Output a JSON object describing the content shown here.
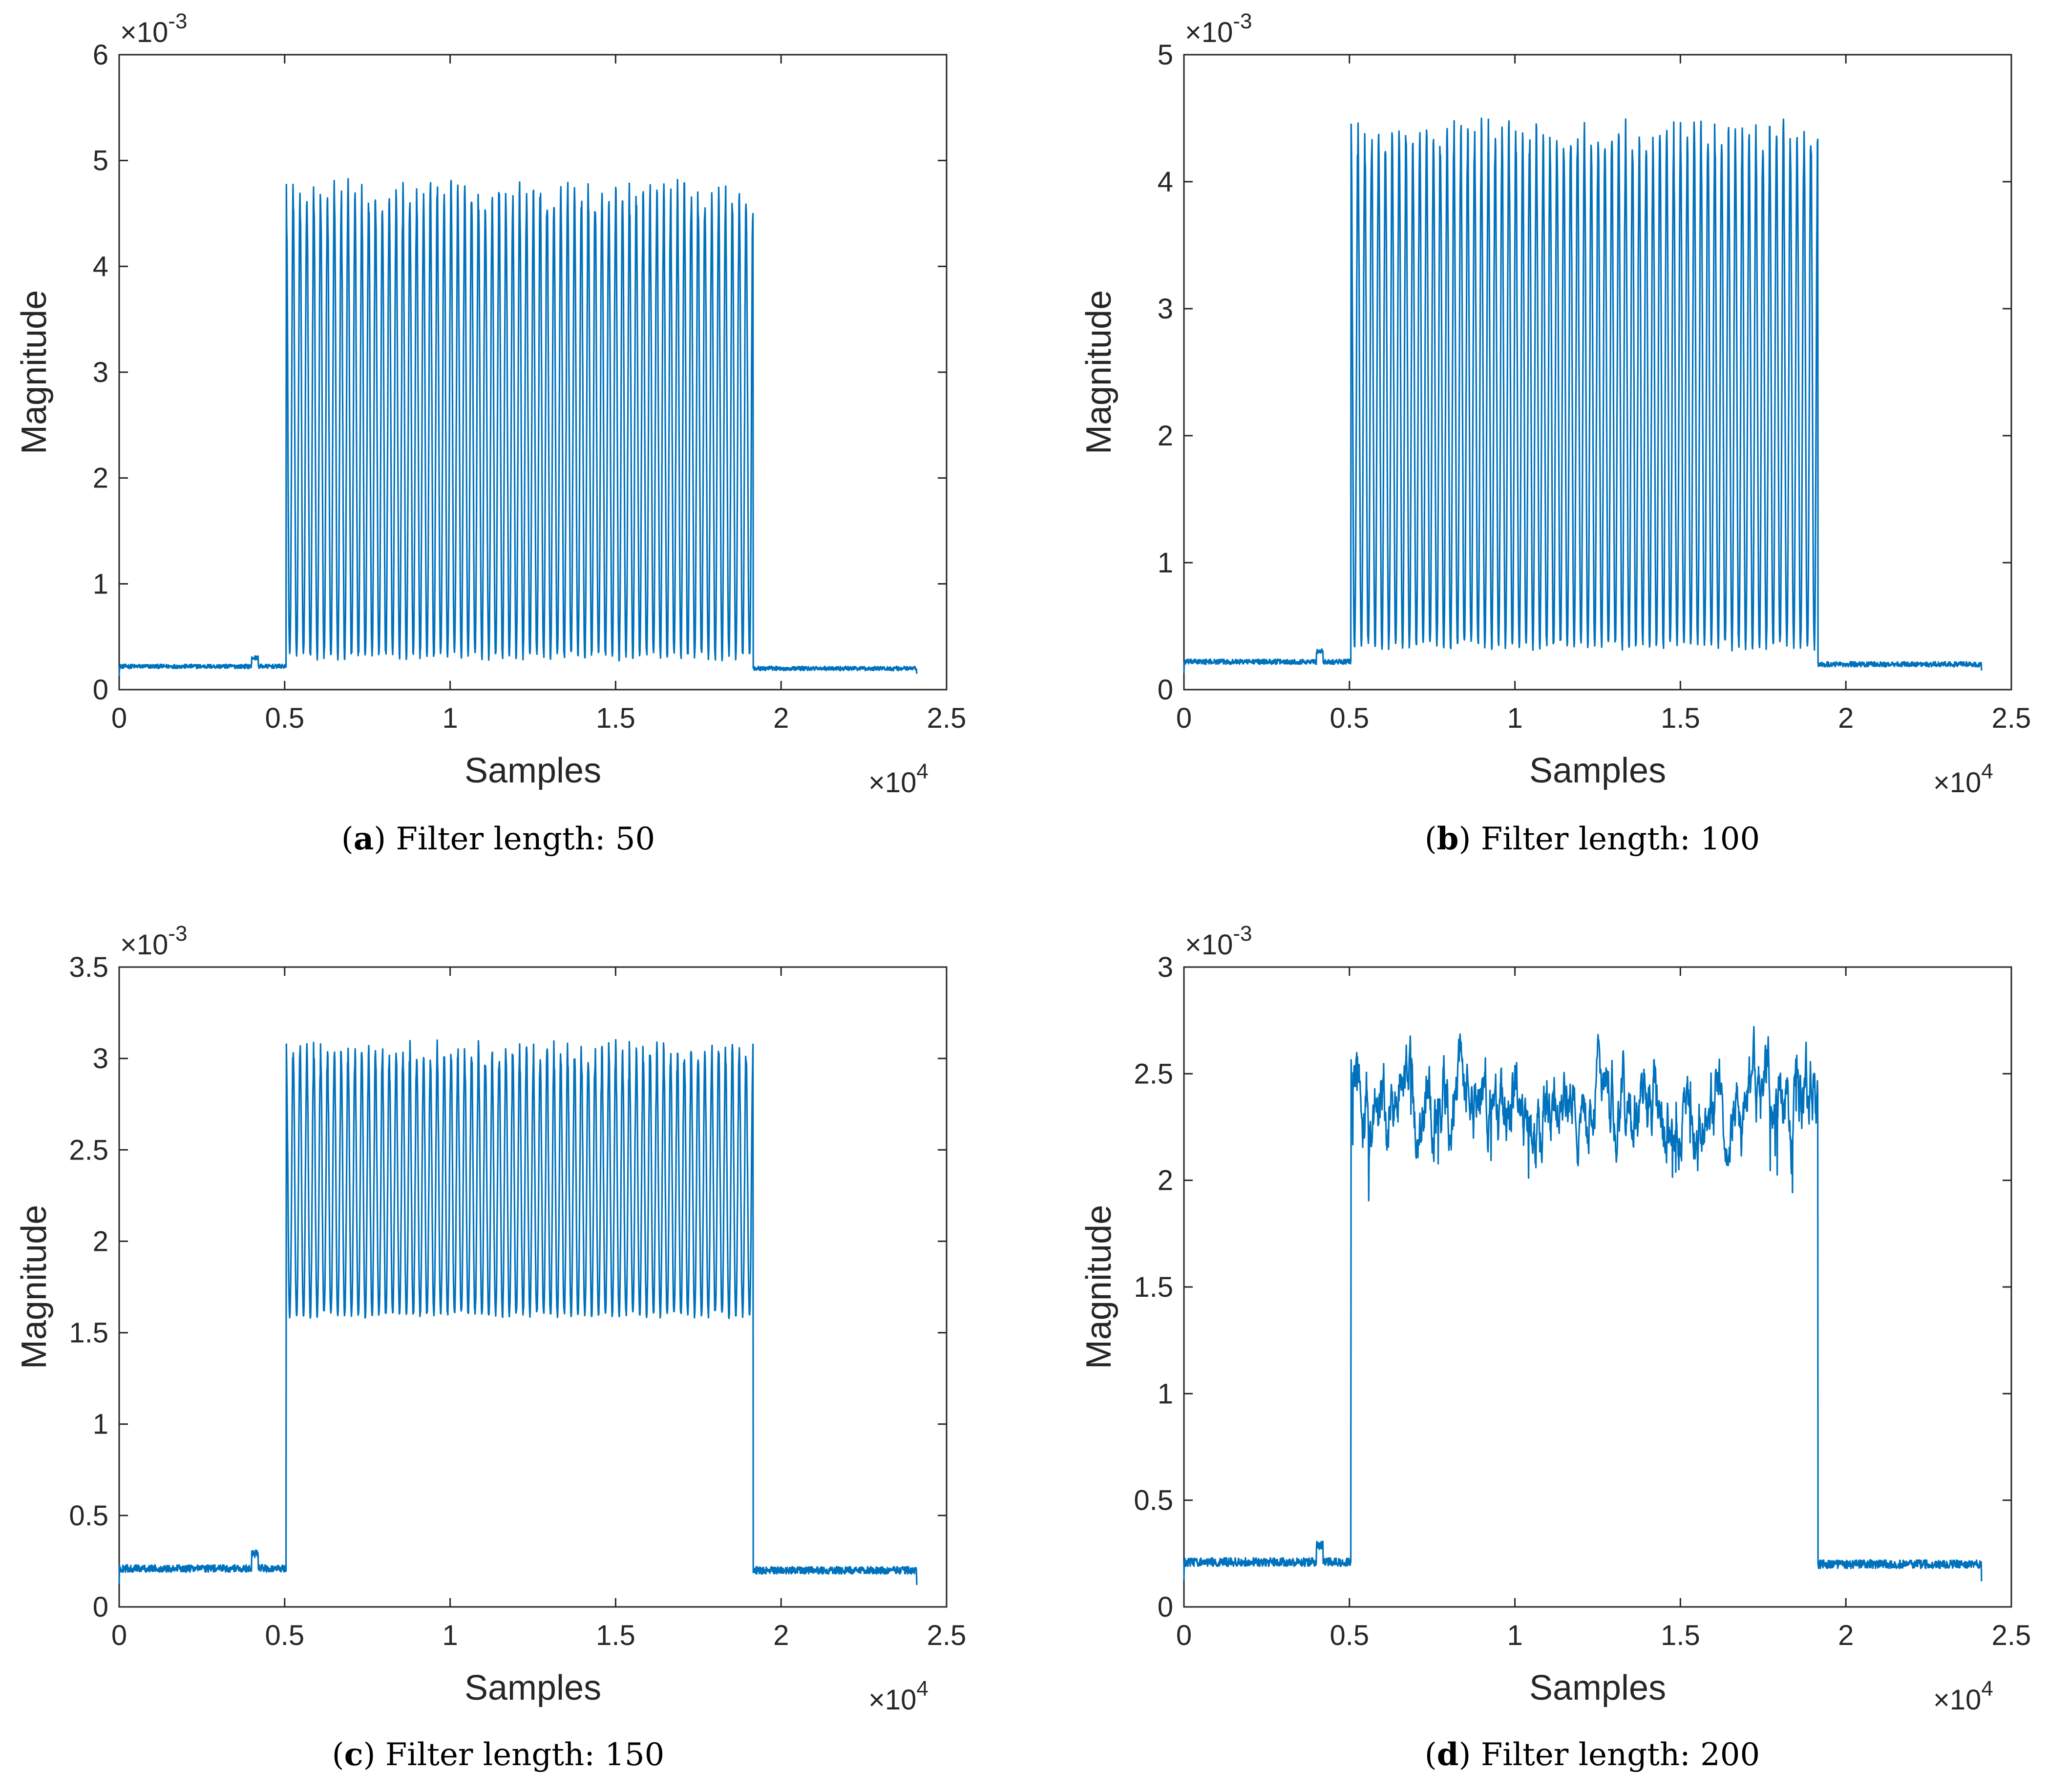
{
  "figure": {
    "background": "#ffffff"
  },
  "chart_data": [
    {
      "type": "line",
      "panel_letter": "a",
      "caption": "Filter length: 50",
      "xlabel": "Samples",
      "ylabel": "Magnitude",
      "xlim": [
        0,
        2.5
      ],
      "ylim": [
        0,
        6
      ],
      "xticks": [
        "0",
        "0.5",
        "1",
        "1.5",
        "2",
        "2.5"
      ],
      "yticks": [
        "0",
        "1",
        "2",
        "3",
        "4",
        "5",
        "6"
      ],
      "x_multiplier": "×10",
      "x_exponent": "4",
      "y_multiplier": "×10",
      "y_exponent": "-3",
      "color": "#0072BD",
      "signal": {
        "x_start": 0,
        "x_end": 2.41,
        "baseline": 0.22,
        "pulse_start": 0.505,
        "pulse_end": 1.915,
        "oscillations": 68,
        "peak": 4.6,
        "trough": 0.32,
        "noise": 0.35,
        "smooth": 0.0,
        "tail_level": 0.2,
        "end_value": 0.15
      }
    },
    {
      "type": "line",
      "panel_letter": "b",
      "caption": "Filter length: 100",
      "xlabel": "Samples",
      "ylabel": "Magnitude",
      "xlim": [
        0,
        2.5
      ],
      "ylim": [
        0,
        5
      ],
      "xticks": [
        "0",
        "0.5",
        "1",
        "1.5",
        "2",
        "2.5"
      ],
      "yticks": [
        "0",
        "1",
        "2",
        "3",
        "4",
        "5"
      ],
      "x_multiplier": "×10",
      "x_exponent": "4",
      "y_multiplier": "×10",
      "y_exponent": "-3",
      "color": "#0072BD",
      "signal": {
        "x_start": 0,
        "x_end": 2.41,
        "baseline": 0.22,
        "pulse_start": 0.505,
        "pulse_end": 1.915,
        "oscillations": 68,
        "peak": 4.3,
        "trough": 0.35,
        "noise": 0.3,
        "smooth": 0.0,
        "tail_level": 0.2,
        "end_value": 0.15
      }
    },
    {
      "type": "line",
      "panel_letter": "c",
      "caption": "Filter length: 150",
      "xlabel": "Samples",
      "ylabel": "Magnitude",
      "xlim": [
        0,
        2.5
      ],
      "ylim": [
        0,
        3.5
      ],
      "xticks": [
        "0",
        "0.5",
        "1",
        "1.5",
        "2",
        "2.5"
      ],
      "yticks": [
        "0",
        "0.5",
        "1",
        "1.5",
        "2",
        "2.5",
        "3",
        "3.5"
      ],
      "x_multiplier": "×10",
      "x_exponent": "4",
      "y_multiplier": "×10",
      "y_exponent": "-3",
      "color": "#0072BD",
      "signal": {
        "x_start": 0,
        "x_end": 2.41,
        "baseline": 0.21,
        "pulse_start": 0.505,
        "pulse_end": 1.915,
        "oscillations": 68,
        "peak": 3.0,
        "trough": 1.6,
        "noise": 0.15,
        "smooth": 0.0,
        "tail_level": 0.2,
        "end_value": 0.12
      }
    },
    {
      "type": "line",
      "panel_letter": "d",
      "caption": "Filter length: 200",
      "xlabel": "Samples",
      "ylabel": "Magnitude",
      "xlim": [
        0,
        2.5
      ],
      "ylim": [
        0,
        3
      ],
      "xticks": [
        "0",
        "0.5",
        "1",
        "1.5",
        "2",
        "2.5"
      ],
      "yticks": [
        "0",
        "0.5",
        "1",
        "1.5",
        "2",
        "2.5",
        "3"
      ],
      "x_multiplier": "×10",
      "x_exponent": "4",
      "y_multiplier": "×10",
      "y_exponent": "-3",
      "color": "#0072BD",
      "signal": {
        "x_start": 0,
        "x_end": 2.41,
        "baseline": 0.21,
        "pulse_start": 0.505,
        "pulse_end": 1.915,
        "oscillations": 0,
        "peak": 2.35,
        "trough": 2.35,
        "noise": 0.12,
        "smooth": 1.0,
        "tail_level": 0.2,
        "end_value": 0.12
      }
    }
  ]
}
